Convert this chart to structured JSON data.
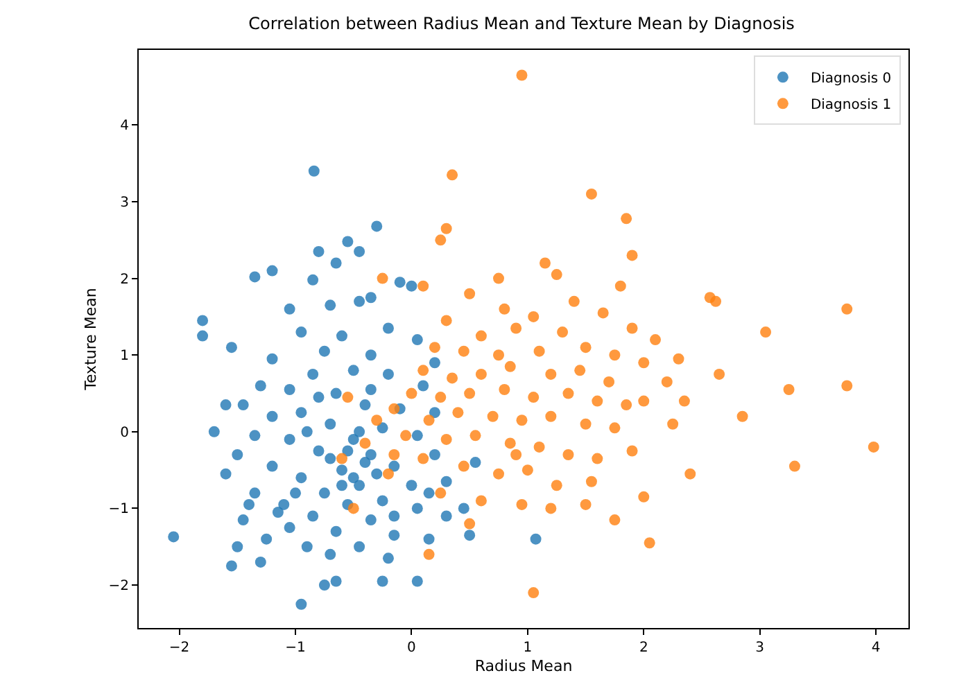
{
  "chart_data": {
    "type": "scatter",
    "title": "Correlation between Radius Mean and Texture Mean by Diagnosis",
    "xlabel": "Radius Mean",
    "ylabel": "Texture Mean",
    "xlim": [
      -2.35,
      4.28
    ],
    "ylim": [
      -2.56,
      4.98
    ],
    "xticks": [
      -2,
      -1,
      0,
      1,
      2,
      3,
      4
    ],
    "yticks": [
      -2,
      -1,
      0,
      1,
      2,
      3,
      4
    ],
    "grid": false,
    "legend": "top right",
    "marker": "circle",
    "series": [
      {
        "name": "Diagnosis 0",
        "color": "#1f77b4",
        "x": [
          -0.84,
          -0.3,
          -0.55,
          -0.45,
          -0.8,
          -0.65,
          -1.2,
          -1.35,
          -0.85,
          -1.05,
          -0.7,
          -0.35,
          -0.1,
          0.0,
          -0.45,
          -1.8,
          -1.8,
          -1.55,
          -0.95,
          -0.6,
          -0.2,
          0.05,
          -0.75,
          -1.2,
          -0.35,
          -1.3,
          -1.45,
          -1.05,
          -0.85,
          -0.5,
          -0.2,
          0.1,
          -0.65,
          -0.95,
          -1.2,
          -1.6,
          -0.4,
          -0.1,
          0.2,
          -0.7,
          -1.35,
          -1.05,
          -0.25,
          0.05,
          -0.5,
          -0.8,
          -1.5,
          -1.2,
          -0.35,
          -0.15,
          0.2,
          -0.6,
          -0.95,
          -1.6,
          -1.35,
          -0.45,
          -0.75,
          0.0,
          0.3,
          -1.1,
          -0.55,
          -0.25,
          -1.4,
          -0.85,
          -1.05,
          -0.35,
          0.05,
          0.3,
          -0.65,
          -1.25,
          -1.5,
          -0.15,
          -0.9,
          -0.45,
          0.15,
          -1.3,
          -1.55,
          -0.7,
          -0.2,
          -2.05,
          -0.95,
          -0.75,
          -0.65,
          -0.25,
          0.05,
          1.07,
          0.45,
          0.5,
          0.55,
          -0.55,
          -0.45,
          -0.6,
          -0.3,
          -0.7,
          -0.4,
          -0.5,
          -1.7,
          -1.0,
          -0.15,
          0.2,
          0.15,
          -0.9,
          -1.15,
          -0.35,
          -0.8,
          -1.45
        ],
        "values": [
          3.4,
          2.68,
          2.48,
          2.35,
          2.35,
          2.2,
          2.1,
          2.02,
          1.98,
          1.6,
          1.65,
          1.75,
          1.95,
          1.9,
          1.7,
          1.45,
          1.25,
          1.1,
          1.3,
          1.25,
          1.35,
          1.2,
          1.05,
          0.95,
          1.0,
          0.6,
          0.35,
          0.55,
          0.75,
          0.8,
          0.75,
          0.6,
          0.5,
          0.25,
          0.2,
          0.35,
          0.35,
          0.3,
          0.25,
          0.1,
          -0.05,
          -0.1,
          0.05,
          -0.05,
          -0.1,
          -0.25,
          -0.3,
          -0.45,
          -0.3,
          -0.45,
          -0.3,
          -0.5,
          -0.6,
          -0.55,
          -0.8,
          -0.7,
          -0.8,
          -0.7,
          -0.65,
          -0.95,
          -0.95,
          -0.9,
          -0.95,
          -1.1,
          -1.25,
          -1.15,
          -1.0,
          -1.1,
          -1.3,
          -1.4,
          -1.5,
          -1.35,
          -1.5,
          -1.5,
          -1.4,
          -1.7,
          -1.75,
          -1.6,
          -1.65,
          -1.37,
          -2.25,
          -2.0,
          -1.95,
          -1.95,
          -1.95,
          -1.4,
          -1.0,
          -1.35,
          -0.4,
          -0.25,
          0.0,
          -0.7,
          -0.55,
          -0.35,
          -0.4,
          -0.6,
          0.0,
          -0.8,
          -1.1,
          0.9,
          -0.8,
          0.0,
          -1.05,
          0.55,
          0.45,
          -1.15
        ]
      },
      {
        "name": "Diagnosis 1",
        "color": "#ff7f0e",
        "x": [
          0.95,
          0.35,
          1.55,
          1.85,
          0.25,
          0.3,
          1.25,
          1.9,
          2.57,
          2.62,
          3.75,
          3.05,
          2.3,
          2.65,
          2.0,
          3.25,
          2.85,
          3.75,
          3.3,
          3.98,
          2.4,
          2.0,
          1.75,
          1.5,
          2.05,
          0.95,
          1.05,
          -0.25,
          0.1,
          0.5,
          0.75,
          1.4,
          1.8,
          1.65,
          1.05,
          0.3,
          0.6,
          0.9,
          1.3,
          1.9,
          2.1,
          0.2,
          0.45,
          0.75,
          1.1,
          1.5,
          1.75,
          2.0,
          0.1,
          0.35,
          0.6,
          0.85,
          1.2,
          1.45,
          1.7,
          2.2,
          0.0,
          0.25,
          0.5,
          0.8,
          1.05,
          1.35,
          1.6,
          1.85,
          -0.15,
          0.15,
          0.4,
          0.7,
          0.95,
          1.2,
          1.5,
          1.75,
          2.25,
          -0.05,
          0.3,
          0.55,
          0.85,
          1.1,
          1.35,
          1.6,
          1.9,
          0.1,
          0.45,
          0.75,
          1.0,
          1.25,
          1.55,
          0.25,
          0.6,
          1.2,
          0.5,
          -0.6,
          -0.4,
          -0.2,
          -0.3,
          -0.55,
          -0.15,
          0.15,
          -0.5,
          0.8,
          1.15,
          2.35,
          0.9
        ],
        "values": [
          4.65,
          3.35,
          3.1,
          2.78,
          2.5,
          2.65,
          2.05,
          2.3,
          1.75,
          1.7,
          1.6,
          1.3,
          0.95,
          0.75,
          0.4,
          0.55,
          0.2,
          0.6,
          -0.45,
          -0.2,
          -0.55,
          -0.85,
          -1.15,
          -0.95,
          -1.45,
          -0.95,
          -2.1,
          2.0,
          1.9,
          1.8,
          2.0,
          1.7,
          1.9,
          1.55,
          1.5,
          1.45,
          1.25,
          1.35,
          1.3,
          1.35,
          1.2,
          1.1,
          1.05,
          1.0,
          1.05,
          1.1,
          1.0,
          0.9,
          0.8,
          0.7,
          0.75,
          0.85,
          0.75,
          0.8,
          0.65,
          0.65,
          0.5,
          0.45,
          0.5,
          0.55,
          0.45,
          0.5,
          0.4,
          0.35,
          0.3,
          0.15,
          0.25,
          0.2,
          0.15,
          0.2,
          0.1,
          0.05,
          0.1,
          -0.05,
          -0.1,
          -0.05,
          -0.15,
          -0.2,
          -0.3,
          -0.35,
          -0.25,
          -0.35,
          -0.45,
          -0.55,
          -0.5,
          -0.7,
          -0.65,
          -0.8,
          -0.9,
          -1.0,
          -1.2,
          -0.35,
          -0.15,
          -0.55,
          0.15,
          0.45,
          -0.3,
          -1.6,
          -1.0,
          1.6,
          2.2,
          0.4,
          -0.3
        ]
      }
    ]
  }
}
